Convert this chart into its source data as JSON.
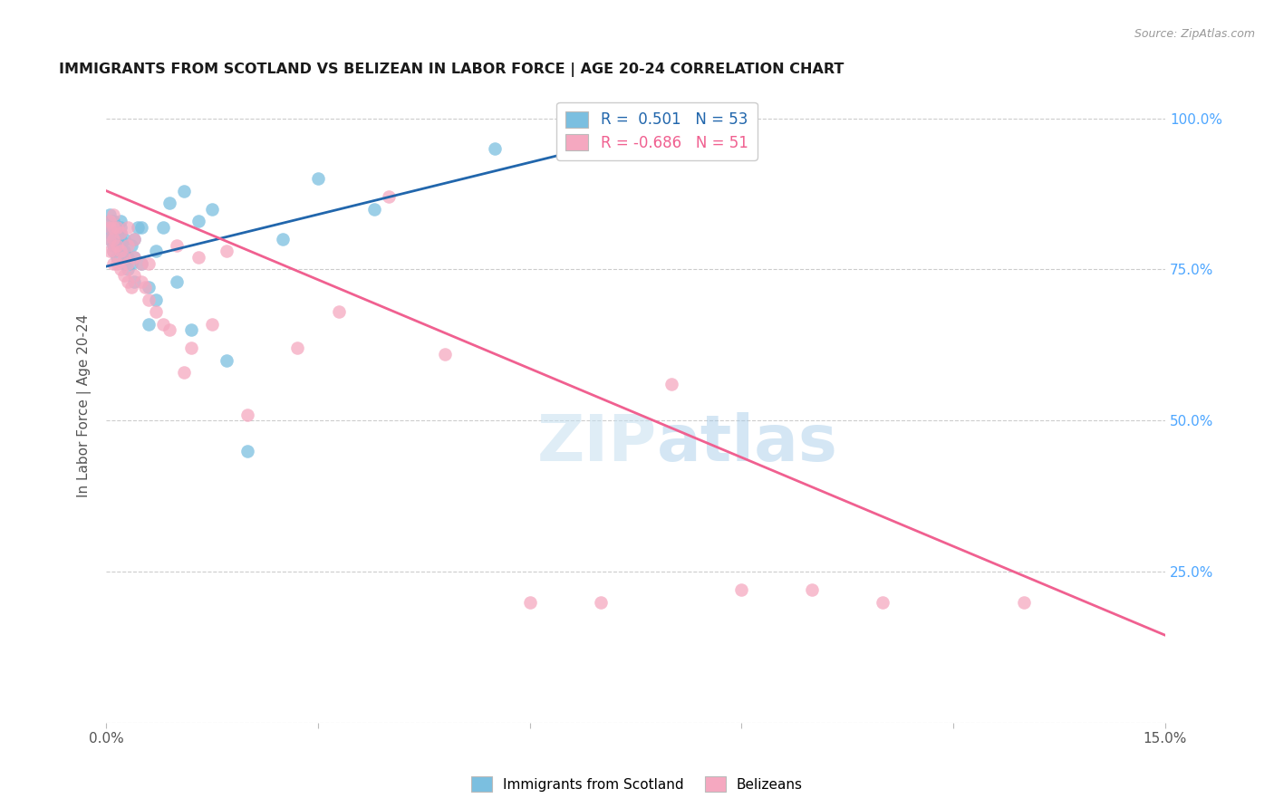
{
  "title": "IMMIGRANTS FROM SCOTLAND VS BELIZEAN IN LABOR FORCE | AGE 20-24 CORRELATION CHART",
  "source": "Source: ZipAtlas.com",
  "xlabel": "",
  "ylabel": "In Labor Force | Age 20-24",
  "xlim": [
    0.0,
    0.15
  ],
  "ylim": [
    0.0,
    1.05
  ],
  "yticks": [
    0.0,
    0.25,
    0.5,
    0.75,
    1.0
  ],
  "ytick_labels": [
    "",
    "25.0%",
    "50.0%",
    "75.0%",
    "100.0%"
  ],
  "xticks": [
    0.0,
    0.03,
    0.06,
    0.09,
    0.12,
    0.15
  ],
  "xtick_labels": [
    "0.0%",
    "",
    "",
    "",
    "",
    "15.0%"
  ],
  "scotland_R": 0.501,
  "scotland_N": 53,
  "belizean_R": -0.686,
  "belizean_N": 51,
  "scotland_color": "#7bbfe0",
  "belizean_color": "#f5a8c0",
  "scotland_line_color": "#2166ac",
  "belizean_line_color": "#f06090",
  "background_color": "#ffffff",
  "watermark_zip": "ZIP",
  "watermark_atlas": "atlas",
  "scotland_x": [
    0.0005,
    0.0005,
    0.0005,
    0.0005,
    0.0005,
    0.001,
    0.001,
    0.001,
    0.001,
    0.001,
    0.001,
    0.001,
    0.0015,
    0.0015,
    0.0015,
    0.0015,
    0.0015,
    0.002,
    0.002,
    0.002,
    0.002,
    0.002,
    0.0025,
    0.0025,
    0.0025,
    0.003,
    0.003,
    0.0035,
    0.0035,
    0.004,
    0.004,
    0.004,
    0.0045,
    0.005,
    0.005,
    0.006,
    0.006,
    0.007,
    0.007,
    0.008,
    0.009,
    0.01,
    0.011,
    0.012,
    0.013,
    0.015,
    0.017,
    0.02,
    0.025,
    0.03,
    0.038,
    0.055,
    0.075
  ],
  "scotland_y": [
    0.8,
    0.81,
    0.82,
    0.83,
    0.84,
    0.78,
    0.79,
    0.8,
    0.81,
    0.82,
    0.82,
    0.83,
    0.77,
    0.79,
    0.8,
    0.81,
    0.82,
    0.78,
    0.8,
    0.81,
    0.82,
    0.83,
    0.76,
    0.78,
    0.8,
    0.75,
    0.77,
    0.76,
    0.79,
    0.73,
    0.77,
    0.8,
    0.82,
    0.76,
    0.82,
    0.66,
    0.72,
    0.7,
    0.78,
    0.82,
    0.86,
    0.73,
    0.88,
    0.65,
    0.83,
    0.85,
    0.6,
    0.45,
    0.8,
    0.9,
    0.85,
    0.95,
    0.97
  ],
  "belizean_x": [
    0.0005,
    0.0005,
    0.0005,
    0.0005,
    0.001,
    0.001,
    0.001,
    0.001,
    0.001,
    0.0015,
    0.0015,
    0.0015,
    0.002,
    0.002,
    0.002,
    0.0025,
    0.0025,
    0.003,
    0.003,
    0.003,
    0.003,
    0.0035,
    0.004,
    0.004,
    0.004,
    0.005,
    0.005,
    0.0055,
    0.006,
    0.006,
    0.007,
    0.008,
    0.009,
    0.01,
    0.011,
    0.012,
    0.013,
    0.015,
    0.017,
    0.02,
    0.027,
    0.033,
    0.04,
    0.048,
    0.06,
    0.07,
    0.08,
    0.09,
    0.1,
    0.11,
    0.13
  ],
  "belizean_y": [
    0.78,
    0.8,
    0.82,
    0.83,
    0.76,
    0.78,
    0.8,
    0.82,
    0.84,
    0.76,
    0.79,
    0.82,
    0.75,
    0.78,
    0.81,
    0.74,
    0.77,
    0.73,
    0.76,
    0.79,
    0.82,
    0.72,
    0.74,
    0.77,
    0.8,
    0.73,
    0.76,
    0.72,
    0.7,
    0.76,
    0.68,
    0.66,
    0.65,
    0.79,
    0.58,
    0.62,
    0.77,
    0.66,
    0.78,
    0.51,
    0.62,
    0.68,
    0.87,
    0.61,
    0.2,
    0.2,
    0.56,
    0.22,
    0.22,
    0.2,
    0.2
  ],
  "scotland_line_x": [
    0.0,
    0.075
  ],
  "scotland_line_y": [
    0.755,
    0.97
  ],
  "belizean_line_x": [
    0.0,
    0.15
  ],
  "belizean_line_y": [
    0.88,
    0.145
  ]
}
